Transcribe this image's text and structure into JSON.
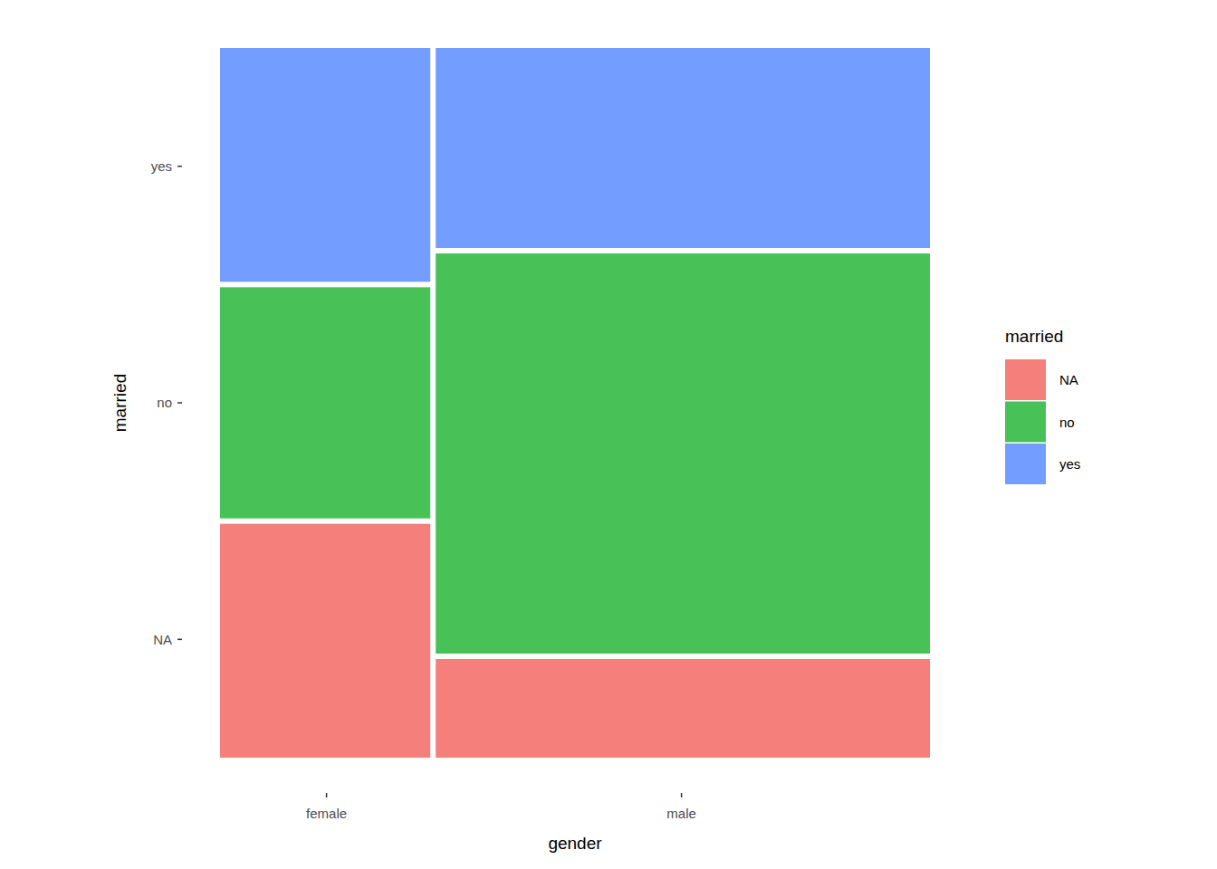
{
  "chart_data": {
    "type": "mosaic",
    "x_label": "gender",
    "y_label": "married",
    "legend_title": "married",
    "categories": [
      "female",
      "male"
    ],
    "series": [
      {
        "name": "NA",
        "color": "#F57F7A",
        "values": [
          1,
          1
        ]
      },
      {
        "name": "no",
        "color": "#48C156",
        "values": [
          1,
          4
        ]
      },
      {
        "name": "yes",
        "color": "#739EFF",
        "values": [
          1,
          2
        ]
      }
    ],
    "legend": "right"
  }
}
